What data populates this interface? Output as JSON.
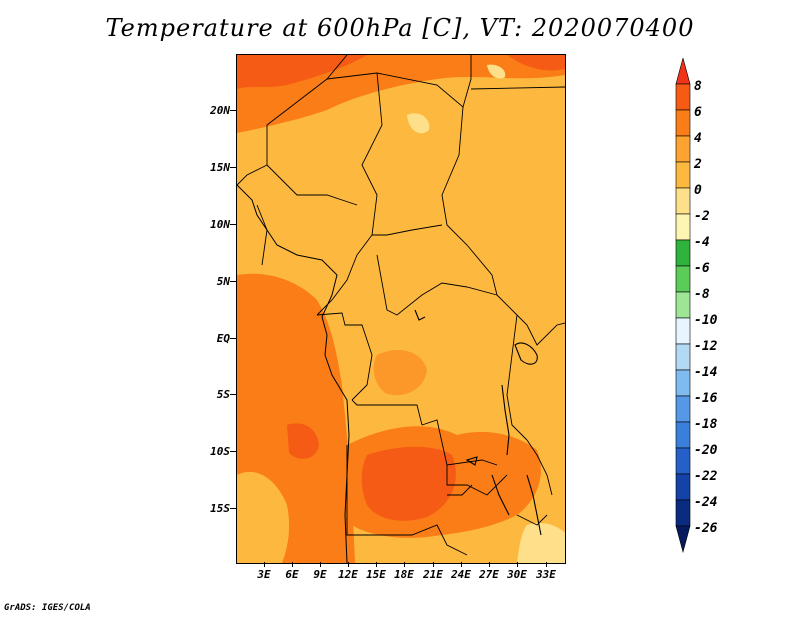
{
  "title": "Temperature at 600hPa [C], VT: 2020070400",
  "credit": "GrADS: IGES/COLA",
  "axes": {
    "lat_labels": [
      "20N",
      "15N",
      "10N",
      "5N",
      "EQ",
      "5S",
      "10S",
      "15S"
    ],
    "lon_labels": [
      "3E",
      "6E",
      "9E",
      "12E",
      "15E",
      "18E",
      "21E",
      "24E",
      "27E",
      "30E",
      "33E"
    ]
  },
  "colorbar": {
    "labels": [
      "8",
      "6",
      "4",
      "2",
      "0",
      "-2",
      "-4",
      "-6",
      "-8",
      "-10",
      "-12",
      "-14",
      "-16",
      "-18",
      "-20",
      "-22",
      "-24",
      "-26"
    ],
    "colors": [
      "#f0331a",
      "#f55b14",
      "#fa7d17",
      "#fca331",
      "#fdb93f",
      "#fee08b",
      "#fff5b3",
      "#2fb33c",
      "#5ccc58",
      "#9ce696",
      "#e6f5ff",
      "#b3daf5",
      "#7fbbee",
      "#5599e6",
      "#3a7fd9",
      "#2460c8",
      "#1443a8",
      "#0a2b80",
      "#061a5e"
    ]
  },
  "legend_colors": {
    "base_field": "#fdb93f",
    "warm_field": "#fa7d17",
    "hot_field": "#f55b14",
    "cool_field": "#fee08b"
  }
}
